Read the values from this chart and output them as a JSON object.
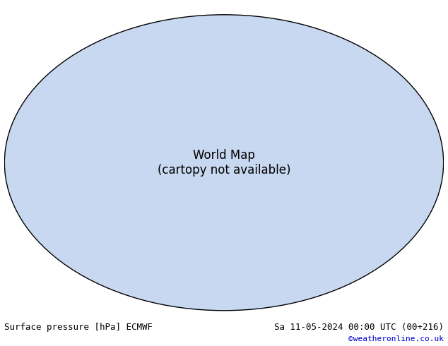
{
  "title_left": "Surface pressure [hPa] ECMWF",
  "title_right": "Sa 11-05-2024 00:00 UTC (00+216)",
  "title_right2": "©weatheronline.co.uk",
  "bg_color": "#ffffff",
  "map_ocean_color": "#e8e8f0",
  "map_land_color": "#b5d9a0",
  "map_border_color": "#808080",
  "contour_interval": 4,
  "p_min": 960,
  "p_max": 1028,
  "contour_black_value": 1013,
  "contour_blue_below": 1013,
  "contour_red_above": 1013,
  "label_fontsize": 7,
  "footer_fontsize": 9,
  "footer_color_left": "#000000",
  "footer_color_right": "#000000",
  "footer_color_url": "#0000cc"
}
